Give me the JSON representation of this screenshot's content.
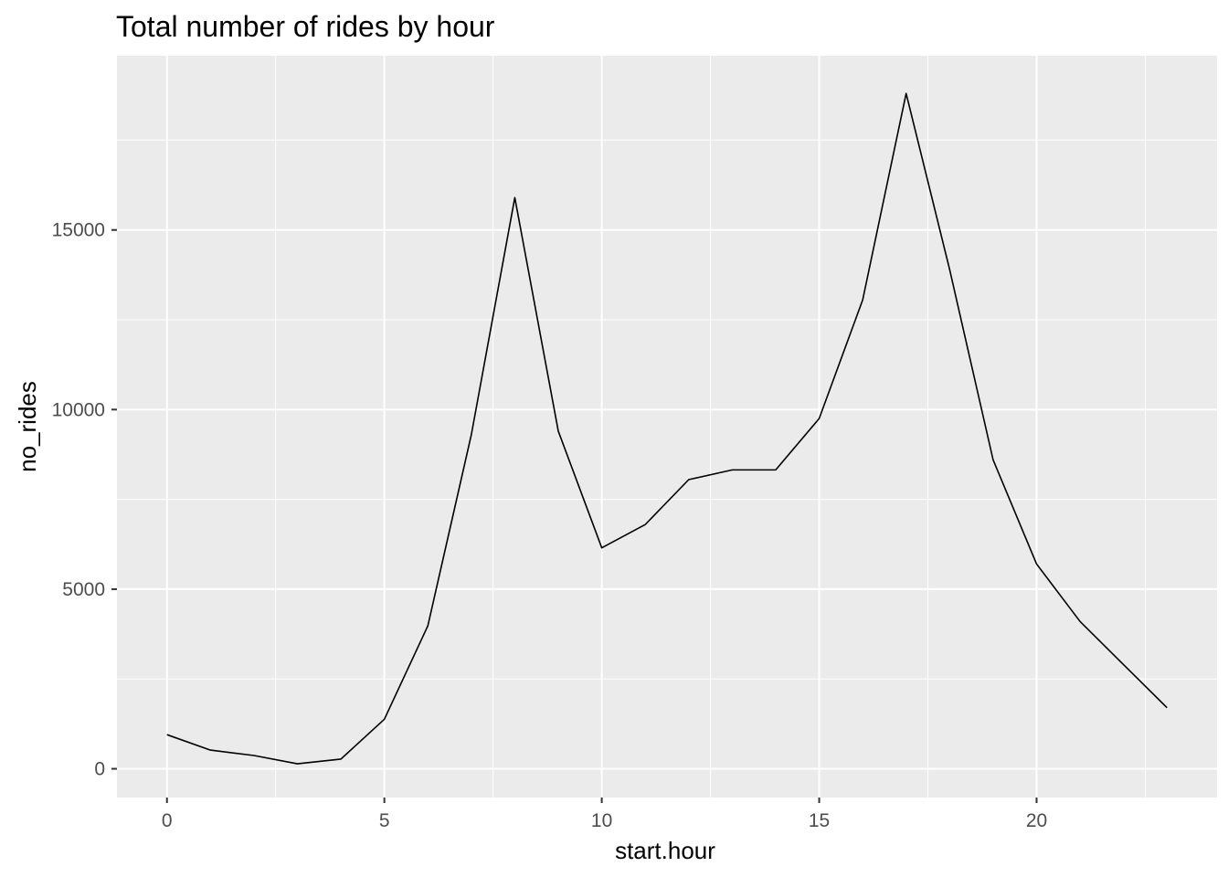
{
  "chart_data": {
    "type": "line",
    "title": "Total number of rides by hour",
    "xlabel": "start.hour",
    "ylabel": "no_rides",
    "x": [
      0,
      1,
      2,
      3,
      4,
      5,
      6,
      7,
      8,
      9,
      10,
      11,
      12,
      13,
      14,
      15,
      16,
      17,
      18,
      19,
      20,
      21,
      22,
      23
    ],
    "series": [
      {
        "values": [
          950,
          520,
          370,
          140,
          270,
          1380,
          3980,
          9300,
          15900,
          9400,
          6150,
          6800,
          8050,
          8320,
          8320,
          9750,
          13050,
          18800,
          13900,
          8600,
          5700,
          4100,
          2900,
          1700
        ],
        "color": "#000000"
      }
    ],
    "xlim": [
      -1.15,
      24.15
    ],
    "ylim": [
      -800,
      19850
    ],
    "x_ticks": [
      0,
      5,
      10,
      15,
      20
    ],
    "x_tick_labels": [
      "0",
      "5",
      "10",
      "15",
      "20"
    ],
    "y_ticks": [
      0,
      5000,
      10000,
      15000
    ],
    "y_tick_labels": [
      "0",
      "5000",
      "10000",
      "15000"
    ],
    "x_minor_ticks": [
      2.5,
      7.5,
      12.5,
      17.5,
      22.5
    ],
    "y_minor_ticks": [
      2500,
      7500,
      12500,
      17500
    ],
    "grid": true,
    "panel_background": "#ebebeb",
    "grid_color": "#ffffff",
    "legend": "none"
  }
}
